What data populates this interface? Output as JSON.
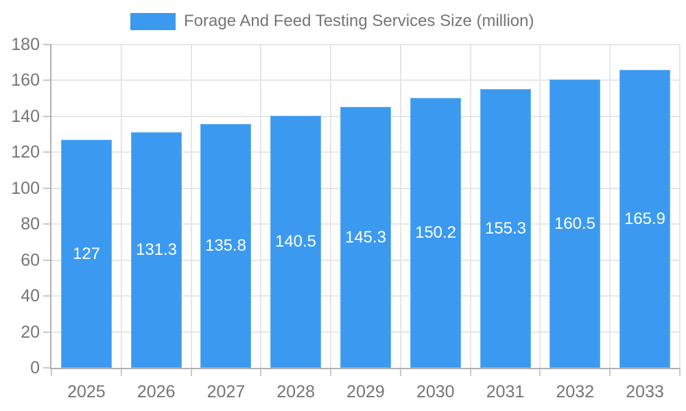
{
  "legend": {
    "label": "Forage And Feed Testing Services Size (million)",
    "swatch_color": "#3b9af0"
  },
  "chart_data": {
    "type": "bar",
    "title": "Forage And Feed Testing Services Size (million)",
    "categories": [
      "2025",
      "2026",
      "2027",
      "2028",
      "2029",
      "2030",
      "2031",
      "2032",
      "2033"
    ],
    "values": [
      127,
      131.3,
      135.8,
      140.5,
      145.3,
      150.2,
      155.3,
      160.5,
      165.9
    ],
    "value_labels": [
      "127",
      "131.3",
      "135.8",
      "140.5",
      "145.3",
      "150.2",
      "155.3",
      "160.5",
      "165.9"
    ],
    "xlabel": "",
    "ylabel": "",
    "ylim": [
      0,
      180
    ],
    "ytick_step": 20,
    "ytick_labels": [
      "0",
      "20",
      "40",
      "60",
      "80",
      "100",
      "120",
      "140",
      "160",
      "180"
    ],
    "grid": true,
    "legend_position": "top",
    "bar_color": "#3b9af0",
    "bar_border_color": "#6ab1f2",
    "value_label_color": "#ffffff",
    "axis_text_color": "#757575",
    "axis_line_color": "#b0b0b0",
    "grid_color": "#e6e6e6",
    "background_color": "#ffffff"
  }
}
